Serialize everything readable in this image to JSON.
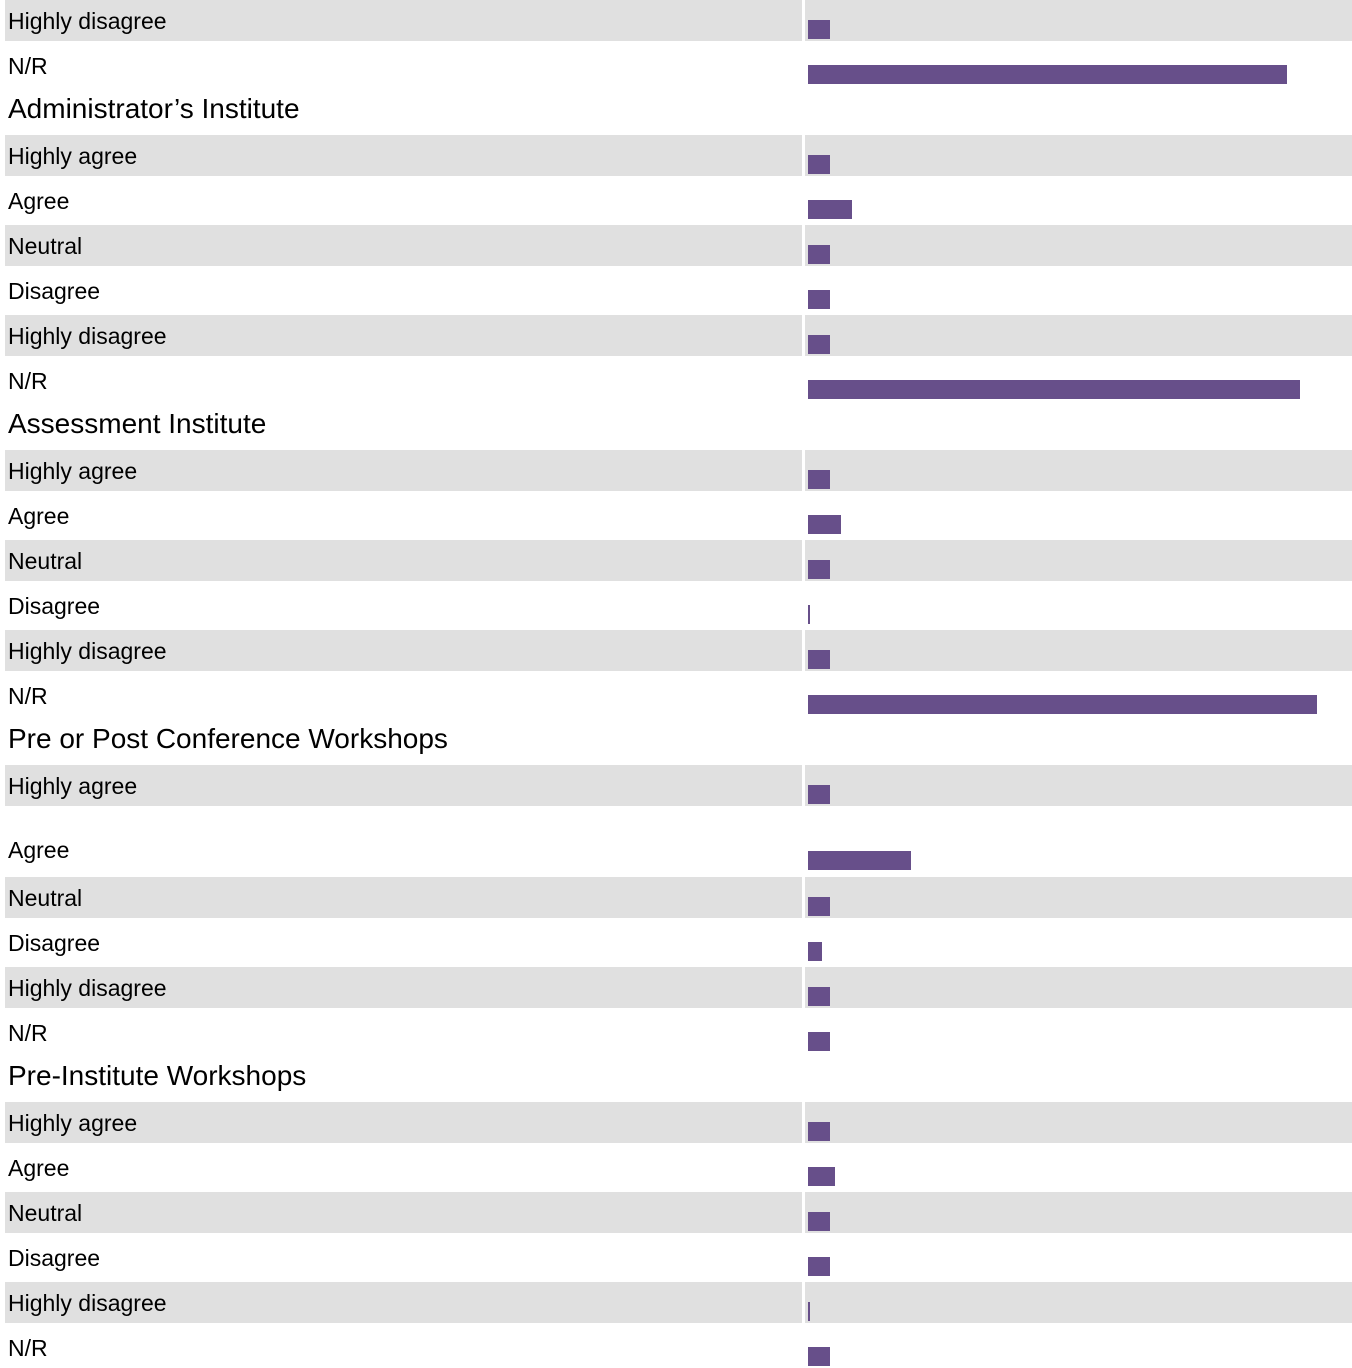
{
  "chart_data": {
    "type": "bar",
    "orientation": "horizontal",
    "bar_color": "#674f8a",
    "row_shading_color": "#e0e0e0",
    "value_max": 100,
    "groups": [
      {
        "title": "",
        "continued": true,
        "categories": [
          "Highly disagree",
          "N/R"
        ],
        "values": [
          4,
          88
        ]
      },
      {
        "title": "Administrator’s Institute",
        "categories": [
          "Highly agree",
          "Agree",
          "Neutral",
          "Disagree",
          "Highly disagree",
          "N/R"
        ],
        "values": [
          4,
          8,
          4,
          4,
          4,
          90.5
        ]
      },
      {
        "title": "Assessment Institute",
        "categories": [
          "Highly agree",
          "Agree",
          "Neutral",
          "Disagree",
          "Highly disagree",
          "N/R"
        ],
        "values": [
          4,
          6,
          4,
          0.3,
          4,
          93.5
        ]
      },
      {
        "title": "Pre or Post Conference Workshops",
        "categories": [
          "Highly agree",
          "Agree",
          "Neutral",
          "Disagree",
          "Highly disagree",
          "N/R"
        ],
        "values": [
          4,
          19,
          4,
          2.5,
          4,
          4
        ]
      },
      {
        "title": "Pre-Institute Workshops",
        "categories": [
          "Highly agree",
          "Agree",
          "Neutral",
          "Disagree",
          "Highly disagree",
          "N/R"
        ],
        "values": [
          4,
          5,
          4,
          4,
          0.3,
          4
        ]
      }
    ]
  }
}
